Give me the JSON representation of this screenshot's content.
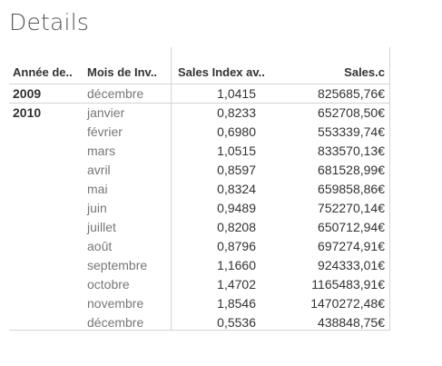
{
  "title": "Details",
  "columns": {
    "year": "Année de..",
    "month": "Mois de Inv..",
    "index": "Sales Index av..",
    "sales": "Sales.c"
  },
  "rows": [
    {
      "year": "2009",
      "month": "décembre",
      "index": "1,0415",
      "sales": "825685,76€"
    },
    {
      "year": "2010",
      "month": "janvier",
      "index": "0,8233",
      "sales": "652708,50€"
    },
    {
      "year": "",
      "month": "février",
      "index": "0,6980",
      "sales": "553339,74€"
    },
    {
      "year": "",
      "month": "mars",
      "index": "1,0515",
      "sales": "833570,13€"
    },
    {
      "year": "",
      "month": "avril",
      "index": "0,8597",
      "sales": "681528,99€"
    },
    {
      "year": "",
      "month": "mai",
      "index": "0,8324",
      "sales": "659858,86€"
    },
    {
      "year": "",
      "month": "juin",
      "index": "0,9489",
      "sales": "752270,14€"
    },
    {
      "year": "",
      "month": "juillet",
      "index": "0,8208",
      "sales": "650712,94€"
    },
    {
      "year": "",
      "month": "août",
      "index": "0,8796",
      "sales": "697274,91€"
    },
    {
      "year": "",
      "month": "septembre",
      "index": "1,1660",
      "sales": "924333,01€"
    },
    {
      "year": "",
      "month": "octobre",
      "index": "1,4702",
      "sales": "1165483,91€"
    },
    {
      "year": "",
      "month": "novembre",
      "index": "1,8546",
      "sales": "1470272,48€"
    },
    {
      "year": "",
      "month": "décembre",
      "index": "0,5536",
      "sales": "438848,75€"
    }
  ]
}
